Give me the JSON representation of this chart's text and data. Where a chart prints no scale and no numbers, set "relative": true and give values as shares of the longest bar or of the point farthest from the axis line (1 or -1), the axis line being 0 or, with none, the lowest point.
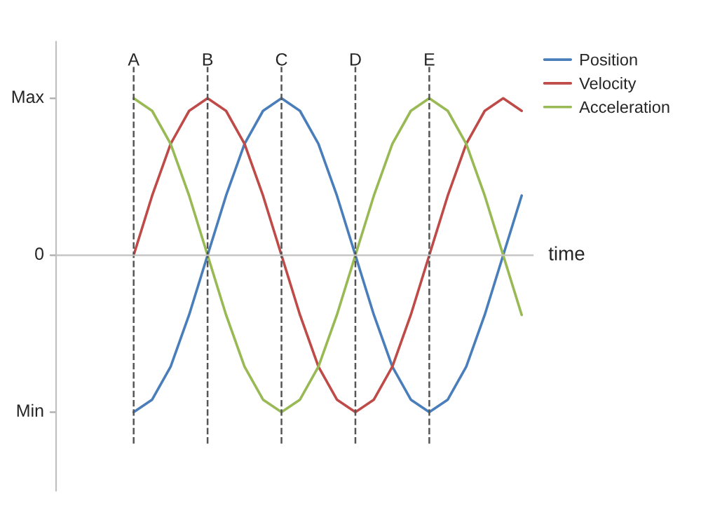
{
  "chart_data": {
    "type": "line",
    "xlabel": "time",
    "categories": [
      "A",
      null,
      null,
      null,
      "B",
      null,
      null,
      null,
      "C",
      null,
      null,
      null,
      "D",
      null,
      null,
      null,
      "E",
      null,
      null,
      null,
      null,
      null
    ],
    "series": [
      {
        "name": "Position",
        "color": "#4a7ebb",
        "values": [
          -1,
          -0.92,
          -0.71,
          -0.38,
          0,
          0.38,
          0.71,
          0.92,
          1,
          0.92,
          0.71,
          0.38,
          0,
          -0.38,
          -0.71,
          -0.92,
          -1,
          -0.92,
          -0.71,
          -0.38,
          0,
          0.38
        ]
      },
      {
        "name": "Velocity",
        "color": "#be4b48",
        "values": [
          0,
          0.38,
          0.71,
          0.92,
          1,
          0.92,
          0.71,
          0.38,
          0,
          -0.38,
          -0.71,
          -0.92,
          -1,
          -0.92,
          -0.71,
          -0.38,
          0,
          0.38,
          0.71,
          0.92,
          1,
          0.92
        ]
      },
      {
        "name": "Acceleration",
        "color": "#98b954",
        "values": [
          1,
          0.92,
          0.71,
          0.38,
          0,
          -0.38,
          -0.71,
          -0.92,
          -1,
          -0.92,
          -0.71,
          -0.38,
          0,
          0.38,
          0.71,
          0.92,
          1,
          0.92,
          0.71,
          0.38,
          0,
          -0.38
        ]
      }
    ],
    "relative": true,
    "annotations": [
      "Max",
      "0",
      "Min"
    ],
    "ref_lines": [
      {
        "axis": "x",
        "value": "A",
        "color": "#555555",
        "line_style": "dashed"
      },
      {
        "axis": "x",
        "value": "B",
        "color": "#555555",
        "line_style": "dashed"
      },
      {
        "axis": "x",
        "value": "C",
        "color": "#555555",
        "line_style": "dashed"
      },
      {
        "axis": "x",
        "value": "D",
        "color": "#555555",
        "line_style": "dashed"
      },
      {
        "axis": "x",
        "value": "E",
        "color": "#555555",
        "line_style": "dashed"
      }
    ],
    "legend": "top right",
    "grid": false,
    "marker": "none",
    "line_style": "solid"
  }
}
